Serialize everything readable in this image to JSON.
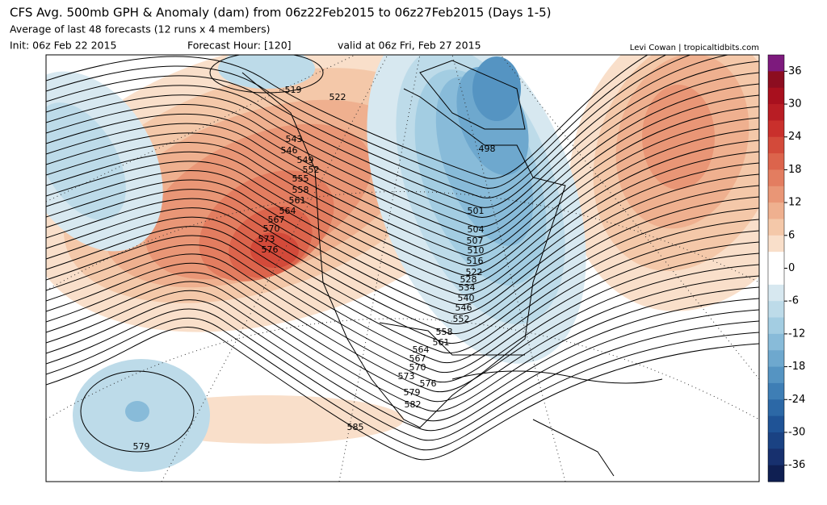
{
  "header": {
    "title": "CFS Avg. 500mb GPH & Anomaly (dam) from 06z22Feb2015 to 06z27Feb2015 (Days 1-5)",
    "subtitle": "Average of last 48 forecasts (12 runs x 4 members)",
    "init": "Init: 06z Feb 22 2015",
    "forecast_hour": "Forecast Hour: [120]",
    "valid": "valid at 06z Fri, Feb 27 2015",
    "credit": "Levi Cowan | tropicaltidbits.com"
  },
  "colorbar": {
    "lim": [
      -39,
      39
    ],
    "colors": [
      "#7d1a7d",
      "#8c0d20",
      "#a8101e",
      "#b81d24",
      "#c9302c",
      "#d34a3a",
      "#dc644c",
      "#e37d60",
      "#e99676",
      "#efb08f",
      "#f4c8a9",
      "#f9dfca",
      "#ffffff",
      "#ffffff",
      "#d7e8f0",
      "#bddbe9",
      "#a3cde2",
      "#88bbd9",
      "#6ea8ce",
      "#5594c2",
      "#3e7eb5",
      "#2c68a6",
      "#1f5396",
      "#1a4283",
      "#17306e",
      "#0f1f52"
    ],
    "ticks": [
      36,
      30,
      24,
      18,
      12,
      6,
      0,
      -6,
      -12,
      -18,
      -24,
      -30,
      -36
    ]
  },
  "contour_labels": [
    "519",
    "522",
    "543",
    "546",
    "549",
    "552",
    "555",
    "558",
    "561",
    "564",
    "567",
    "570",
    "573",
    "576",
    "498",
    "501",
    "504",
    "507",
    "510",
    "516",
    "522",
    "528",
    "534",
    "540",
    "546",
    "552",
    "558",
    "561",
    "564",
    "567",
    "570",
    "573",
    "576",
    "579",
    "582",
    "585",
    "579"
  ]
}
